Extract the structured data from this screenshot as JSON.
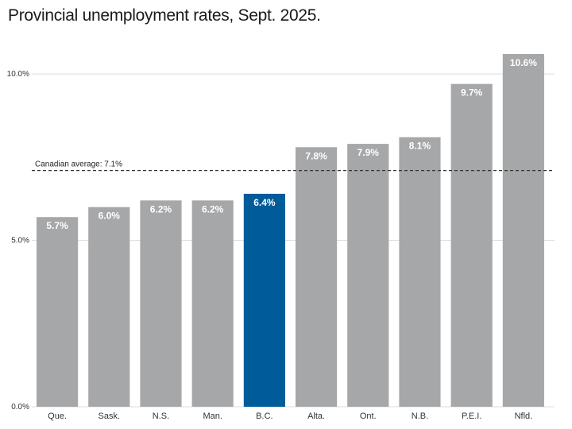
{
  "chart_data": {
    "type": "bar",
    "title": "Provincial unemployment rates, Sept. 2025.",
    "xlabel": "",
    "ylabel": "",
    "categories": [
      "Que.",
      "Sask.",
      "N.S.",
      "Man.",
      "B.C.",
      "Alta.",
      "Ont.",
      "N.B.",
      "P.E.I.",
      "Nfld."
    ],
    "values": [
      5.7,
      6.0,
      6.2,
      6.2,
      6.4,
      7.8,
      7.9,
      8.1,
      9.7,
      10.6
    ],
    "data_labels": [
      "5.7%",
      "6.0%",
      "6.2%",
      "6.2%",
      "6.4%",
      "7.8%",
      "7.9%",
      "8.1%",
      "9.7%",
      "10.6%"
    ],
    "highlight_category": "B.C.",
    "ylim": [
      0,
      10.6
    ],
    "yticks": [
      0,
      5,
      10
    ],
    "ytick_labels": [
      "0.0%",
      "5.0%",
      "10.0%"
    ],
    "grid": true,
    "legend": "none",
    "reference_line": {
      "value": 7.1,
      "label": "Canadian average: 7.1%",
      "style": "dashed"
    },
    "colors": {
      "bar": "#a6a7a9",
      "highlight": "#005b9a",
      "grid": "#dcdcdc",
      "reference_line": "#333333",
      "data_label": "#ffffff"
    }
  }
}
